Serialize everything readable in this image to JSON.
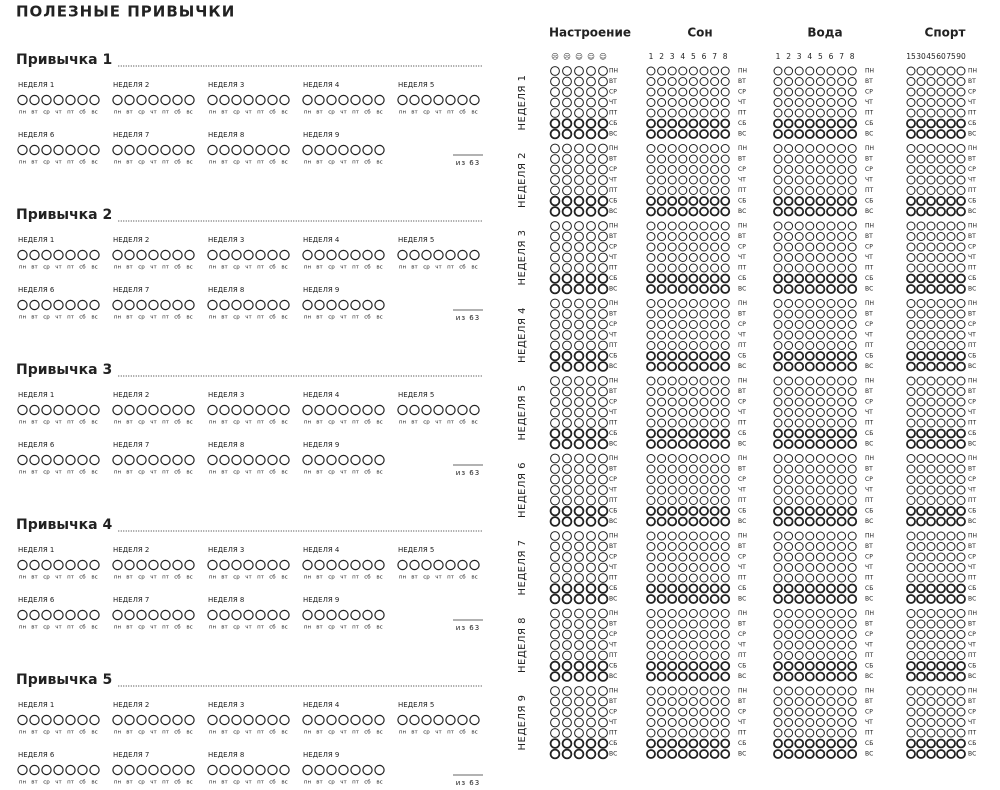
{
  "title": "ПОЛЕЗНЫЕ ПРИВЫЧКИ",
  "habits": [
    {
      "name": "Привычка 1",
      "weeks": [
        "НЕДЕЛЯ 1",
        "НЕДЕЛЯ 2",
        "НЕДЕЛЯ 3",
        "НЕДЕЛЯ 4",
        "НЕДЕЛЯ 5",
        "НЕДЕЛЯ 6",
        "НЕДЕЛЯ 7",
        "НЕДЕЛЯ 8",
        "НЕДЕЛЯ 9"
      ],
      "total": "из 63"
    },
    {
      "name": "Привычка 2",
      "weeks": [
        "НЕДЕЛЯ 1",
        "НЕДЕЛЯ 2",
        "НЕДЕЛЯ 3",
        "НЕДЕЛЯ 4",
        "НЕДЕЛЯ 5",
        "НЕДЕЛЯ 6",
        "НЕДЕЛЯ 7",
        "НЕДЕЛЯ 8",
        "НЕДЕЛЯ 9"
      ],
      "total": "из 63"
    },
    {
      "name": "Привычка 3",
      "weeks": [
        "НЕДЕЛЯ 1",
        "НЕДЕЛЯ 2",
        "НЕДЕЛЯ 3",
        "НЕДЕЛЯ 4",
        "НЕДЕЛЯ 5",
        "НЕДЕЛЯ 6",
        "НЕДЕЛЯ 7",
        "НЕДЕЛЯ 8",
        "НЕДЕЛЯ 9"
      ],
      "total": "из 63"
    },
    {
      "name": "Привычка 4",
      "weeks": [
        "НЕДЕЛЯ 1",
        "НЕДЕЛЯ 2",
        "НЕДЕЛЯ 3",
        "НЕДЕЛЯ 4",
        "НЕДЕЛЯ 5",
        "НЕДЕЛЯ 6",
        "НЕДЕЛЯ 7",
        "НЕДЕЛЯ 8",
        "НЕДЕЛЯ 9"
      ],
      "total": "из 63"
    },
    {
      "name": "Привычка 5",
      "weeks": [
        "НЕДЕЛЯ 1",
        "НЕДЕЛЯ 2",
        "НЕДЕЛЯ 3",
        "НЕДЕЛЯ 4",
        "НЕДЕЛЯ 5",
        "НЕДЕЛЯ 6",
        "НЕДЕЛЯ 7",
        "НЕДЕЛЯ 8",
        "НЕДЕЛЯ 9"
      ],
      "total": "из 63"
    }
  ],
  "days_short": [
    "пн",
    "вт",
    "ср",
    "чт",
    "пт",
    "сб",
    "вс"
  ],
  "tracker": {
    "columns": [
      {
        "title": "Настроение",
        "scale": [
          "☹",
          "☹",
          "☺",
          "☺",
          "☺"
        ]
      },
      {
        "title": "Сон",
        "scale": [
          1,
          2,
          3,
          4,
          5,
          6,
          7,
          8
        ]
      },
      {
        "title": "Вода",
        "scale": [
          1,
          2,
          3,
          4,
          5,
          6,
          7,
          8
        ]
      },
      {
        "title": "Спорт",
        "scale": [
          15,
          30,
          45,
          60,
          75,
          90
        ]
      }
    ],
    "weeks": [
      "НЕДЕЛЯ 1",
      "НЕДЕЛЯ 2",
      "НЕДЕЛЯ 3",
      "НЕДЕЛЯ 4",
      "НЕДЕЛЯ 5",
      "НЕДЕЛЯ 6",
      "НЕДЕЛЯ 7",
      "НЕДЕЛЯ 8",
      "НЕДЕЛЯ 9"
    ],
    "days": [
      "ПН",
      "ВТ",
      "СР",
      "ЧТ",
      "ПТ",
      "СБ",
      "ВС"
    ]
  }
}
